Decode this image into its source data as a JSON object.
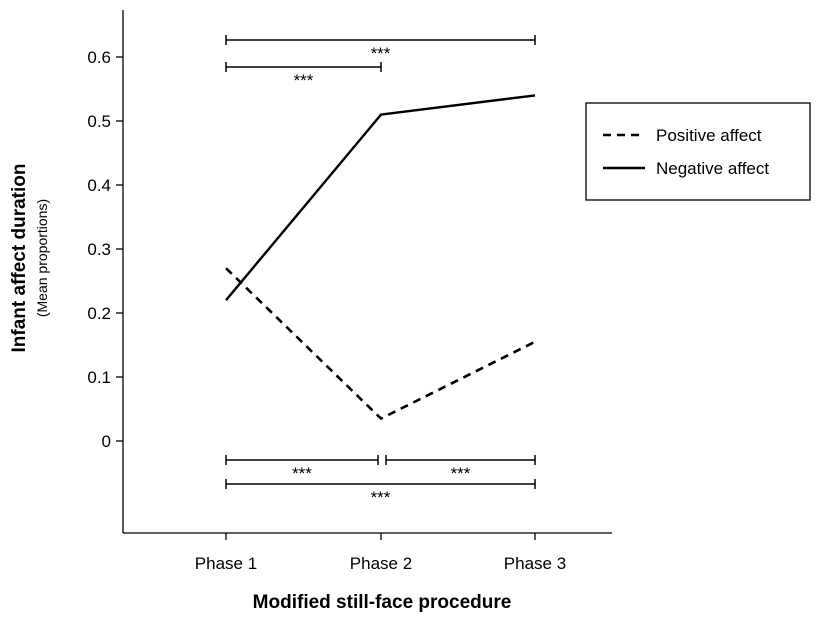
{
  "chart_data": {
    "type": "line",
    "title": "",
    "xlabel": "Modified still-face procedure",
    "ylabel": "Infant affect duration",
    "ylabel_sub": "(Mean proportions)",
    "categories": [
      "Phase 1",
      "Phase 2",
      "Phase 3"
    ],
    "y_ticks": [
      "0",
      "0.1",
      "0.2",
      "0.3",
      "0.4",
      "0.5",
      "0.6"
    ],
    "ylim": [
      -0.19,
      0.67
    ],
    "grid": false,
    "legend_position": "right",
    "series": [
      {
        "name": "Positive affect",
        "style": "dashed",
        "color": "#000000",
        "values": [
          0.27,
          0.035,
          0.155
        ]
      },
      {
        "name": "Negative affect",
        "style": "solid",
        "color": "#000000",
        "values": [
          0.22,
          0.51,
          0.54
        ]
      }
    ],
    "significance": {
      "top": [
        {
          "from": 0,
          "to": 2,
          "label": "***"
        },
        {
          "from": 0,
          "to": 1,
          "label": "***"
        }
      ],
      "bottom": [
        {
          "from": 0,
          "to": 1,
          "label": "***"
        },
        {
          "from": 1,
          "to": 2,
          "label": "***"
        },
        {
          "from": 0,
          "to": 2,
          "label": "***"
        }
      ]
    }
  }
}
